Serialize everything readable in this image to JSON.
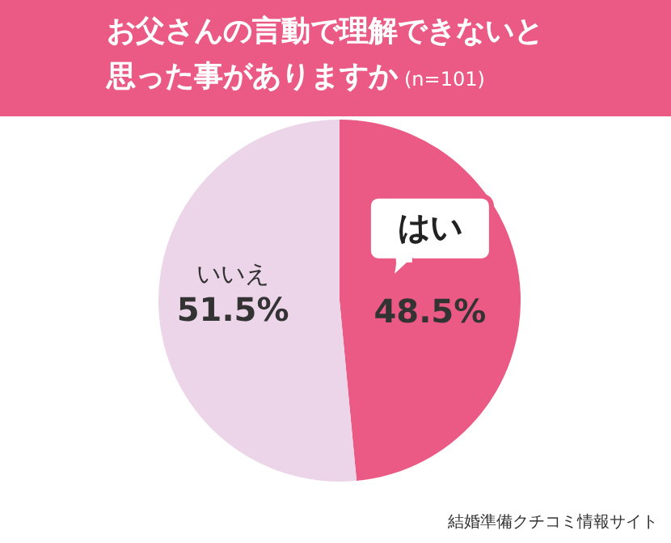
{
  "chart_data": {
    "type": "pie",
    "title": "お父さんの言動で理解できないと思った事がありますか",
    "subtitle": "(n=101)",
    "categories": [
      "はい",
      "いいえ"
    ],
    "values": [
      48.5,
      51.5
    ],
    "colors": [
      "#ea5a84",
      "#ecd5e9"
    ],
    "value_labels": [
      "48.5%",
      "51.5%"
    ],
    "annotations": [
      "結婚準備クチコミ情報サイト"
    ]
  }
}
